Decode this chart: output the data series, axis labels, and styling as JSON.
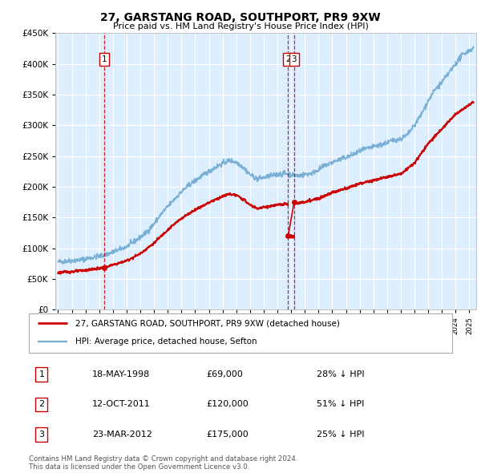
{
  "title": "27, GARSTANG ROAD, SOUTHPORT, PR9 9XW",
  "subtitle": "Price paid vs. HM Land Registry's House Price Index (HPI)",
  "ylim": [
    0,
    450000
  ],
  "yticks": [
    0,
    50000,
    100000,
    150000,
    200000,
    250000,
    300000,
    350000,
    400000,
    450000
  ],
  "ytick_labels": [
    "£0",
    "£50K",
    "£100K",
    "£150K",
    "£200K",
    "£250K",
    "£300K",
    "£350K",
    "£400K",
    "£450K"
  ],
  "plot_bg_color": "#ddeeff",
  "fig_bg_color": "#ffffff",
  "grid_color": "#ffffff",
  "transactions": [
    {
      "date": "18-MAY-1998",
      "price": 69000,
      "year_float": 1998.37,
      "label": "1"
    },
    {
      "date": "12-OCT-2011",
      "price": 120000,
      "year_float": 2011.78,
      "label": "2"
    },
    {
      "date": "23-MAR-2012",
      "price": 175000,
      "year_float": 2012.22,
      "label": "3"
    }
  ],
  "legend_entries": [
    {
      "label": "27, GARSTANG ROAD, SOUTHPORT, PR9 9XW (detached house)",
      "color": "#cc0000",
      "lw": 1.5
    },
    {
      "label": "HPI: Average price, detached house, Sefton",
      "color": "#7ab0d4",
      "lw": 1.2
    }
  ],
  "table_rows": [
    {
      "num": "1",
      "date": "18-MAY-1998",
      "price": "£69,000",
      "pct": "28% ↓ HPI"
    },
    {
      "num": "2",
      "date": "12-OCT-2011",
      "price": "£120,000",
      "pct": "51% ↓ HPI"
    },
    {
      "num": "3",
      "date": "23-MAR-2012",
      "price": "£175,000",
      "pct": "25% ↓ HPI"
    }
  ],
  "footer": "Contains HM Land Registry data © Crown copyright and database right 2024.\nThis data is licensed under the Open Government Licence v3.0.",
  "xmin": 1994.8,
  "xmax": 2025.5
}
